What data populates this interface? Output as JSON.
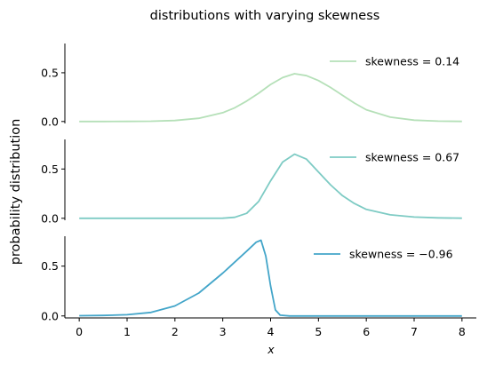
{
  "chart_data": {
    "type": "line",
    "title": "distributions with varying skewness",
    "ylabel": "probability distribution",
    "xlabel": "x",
    "xlim": [
      -0.3,
      8.3
    ],
    "x_ticks": [
      0,
      1,
      2,
      3,
      4,
      5,
      6,
      7,
      8
    ],
    "panels": [
      {
        "legend": "skewness = 0.14",
        "color": "#b5e0b8",
        "ylim": [
          -0.02,
          0.8
        ],
        "y_ticks": [
          0.0,
          0.5
        ],
        "y_tick_labels": [
          "0.0",
          "0.5"
        ],
        "x": [
          0,
          0.5,
          1,
          1.5,
          2,
          2.5,
          3,
          3.25,
          3.5,
          3.75,
          4,
          4.25,
          4.5,
          4.75,
          5,
          5.25,
          5.5,
          5.75,
          6,
          6.5,
          7,
          7.5,
          8
        ],
        "y": [
          0.0,
          0.0,
          0.001,
          0.003,
          0.01,
          0.033,
          0.09,
          0.14,
          0.21,
          0.29,
          0.38,
          0.45,
          0.49,
          0.47,
          0.42,
          0.35,
          0.27,
          0.19,
          0.12,
          0.045,
          0.014,
          0.004,
          0.001
        ]
      },
      {
        "legend": "skewness = 0.67",
        "color": "#7ecbc4",
        "ylim": [
          -0.02,
          0.8
        ],
        "y_ticks": [
          0.0,
          0.5
        ],
        "y_tick_labels": [
          "0.0",
          "0.5"
        ],
        "x": [
          0,
          1,
          2,
          3,
          3.25,
          3.5,
          3.75,
          4,
          4.25,
          4.5,
          4.75,
          5,
          5.25,
          5.5,
          5.75,
          6,
          6.5,
          7,
          7.5,
          8
        ],
        "y": [
          0.0,
          0.0,
          0.0,
          0.001,
          0.01,
          0.05,
          0.17,
          0.38,
          0.57,
          0.65,
          0.6,
          0.47,
          0.34,
          0.23,
          0.15,
          0.09,
          0.035,
          0.012,
          0.004,
          0.001
        ]
      },
      {
        "legend": "skewness = −0.96",
        "color": "#43a5c9",
        "ylim": [
          -0.02,
          0.8
        ],
        "y_ticks": [
          0.0,
          0.5
        ],
        "y_tick_labels": [
          "0.0",
          "0.5"
        ],
        "x": [
          0,
          0.5,
          1,
          1.5,
          2,
          2.5,
          3,
          3.25,
          3.5,
          3.7,
          3.8,
          3.9,
          4,
          4.1,
          4.2,
          4.4,
          5,
          6,
          7,
          8
        ],
        "y": [
          0.002,
          0.005,
          0.012,
          0.035,
          0.1,
          0.23,
          0.43,
          0.54,
          0.65,
          0.74,
          0.76,
          0.6,
          0.3,
          0.06,
          0.008,
          0.0,
          0.0,
          0.0,
          0.0,
          0.0
        ]
      }
    ]
  }
}
